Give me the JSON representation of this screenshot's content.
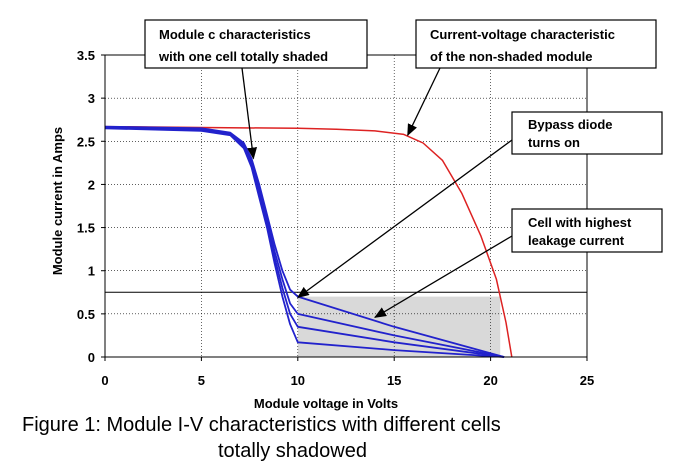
{
  "caption": {
    "line1": "Figure 1: Module I-V characteristics with different cells",
    "line2": "totally shadowed"
  },
  "chart_data": {
    "type": "line",
    "xlabel": "Module voltage in Volts",
    "ylabel": "Module current in Amps",
    "xlim": [
      0,
      25
    ],
    "ylim": [
      0,
      3.5
    ],
    "xticks": [
      "0",
      "5",
      "10",
      "15",
      "20",
      "25"
    ],
    "yticks": [
      "0",
      "0.5",
      "1",
      "1.5",
      "2",
      "2.5",
      "3",
      "3.5"
    ],
    "grid": true,
    "reference_line_y": 0.75,
    "shaded_region": {
      "x": [
        10,
        20.5
      ],
      "y": [
        0,
        0.7
      ]
    },
    "colors": {
      "non_shaded": "#dd2222",
      "shaded": "#2222cc",
      "shade_fill": "#d9d9d9"
    },
    "series": [
      {
        "x": [
          0,
          5,
          10,
          12,
          14,
          15.5,
          16.5,
          17.5,
          18.5,
          19.5,
          20.3,
          20.8,
          21.1
        ],
        "y": [
          2.67,
          2.66,
          2.65,
          2.64,
          2.62,
          2.58,
          2.48,
          2.28,
          1.9,
          1.4,
          0.9,
          0.4,
          0
        ]
      },
      {
        "x": [
          0,
          5,
          6.5,
          7.2,
          7.6,
          8.0,
          8.4,
          8.8,
          9.2,
          9.6,
          10,
          15,
          20.7
        ],
        "y": [
          2.67,
          2.65,
          2.6,
          2.48,
          2.3,
          2.0,
          1.65,
          1.3,
          1.0,
          0.78,
          0.7,
          0.35,
          0
        ]
      },
      {
        "x": [
          0,
          5,
          6.5,
          7.2,
          7.6,
          8.0,
          8.4,
          8.8,
          9.2,
          9.6,
          10,
          15,
          20.7
        ],
        "y": [
          2.66,
          2.64,
          2.59,
          2.46,
          2.27,
          1.95,
          1.6,
          1.22,
          0.9,
          0.62,
          0.5,
          0.25,
          0
        ]
      },
      {
        "x": [
          0,
          5,
          6.5,
          7.2,
          7.6,
          8.0,
          8.4,
          8.8,
          9.2,
          9.6,
          10,
          15,
          20.7
        ],
        "y": [
          2.66,
          2.63,
          2.58,
          2.44,
          2.24,
          1.9,
          1.55,
          1.15,
          0.8,
          0.5,
          0.35,
          0.17,
          0
        ]
      },
      {
        "x": [
          0,
          5,
          6.5,
          7.2,
          7.6,
          8.0,
          8.4,
          8.8,
          9.2,
          9.6,
          10,
          15,
          20.7
        ],
        "y": [
          2.65,
          2.62,
          2.57,
          2.42,
          2.2,
          1.85,
          1.5,
          1.08,
          0.7,
          0.38,
          0.17,
          0.08,
          0
        ]
      }
    ],
    "annotations": [
      {
        "lines": [
          "Module c characteristics",
          "with one cell totally shaded"
        ],
        "points_to": [
          7.7,
          2.3
        ]
      },
      {
        "lines": [
          "Current-voltage characteristic",
          "of the non-shaded module"
        ],
        "points_to": [
          15.7,
          2.57
        ]
      },
      {
        "lines": [
          "Bypass diode",
          "turns on"
        ],
        "points_to": [
          10,
          0.69
        ]
      },
      {
        "lines": [
          "Cell with highest",
          "leakage current"
        ],
        "points_to": [
          14,
          0.46
        ]
      }
    ]
  }
}
